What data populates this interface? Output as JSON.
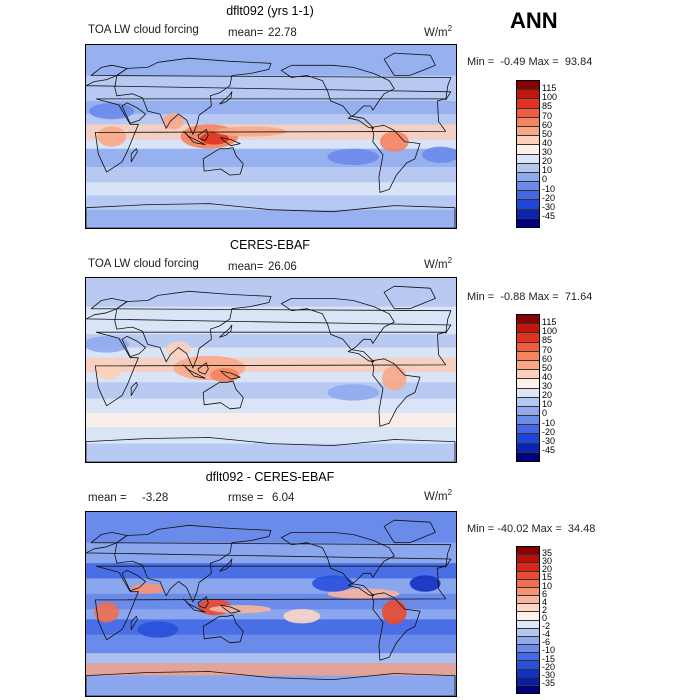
{
  "season": "ANN",
  "panels": [
    {
      "title": "dflt092 (yrs 1-1)",
      "left_label": "TOA LW cloud forcing",
      "stat_label": "mean=",
      "stat_value": "22.78",
      "units": "W/m",
      "units_sup": "2",
      "minmax": "Min =  -0.49 Max =  93.84",
      "colorbar_levels": [
        "115",
        "100",
        "85",
        "70",
        "60",
        "50",
        "40",
        "30",
        "20",
        "10",
        "0",
        "-10",
        "-20",
        "-30",
        "-45"
      ],
      "colorbar_colors": [
        "#8b0000",
        "#c0160e",
        "#e0321f",
        "#f05c3c",
        "#f5835f",
        "#f8a888",
        "#fcd0ba",
        "#fff1e6",
        "#dde6f7",
        "#b5c7f1",
        "#8faaed",
        "#6a8bea",
        "#4468e5",
        "#1f45d8",
        "#0a24b0",
        "#000080"
      ],
      "style": "model"
    },
    {
      "title": "CERES-EBAF",
      "left_label": "TOA LW cloud forcing",
      "stat_label": "mean=",
      "stat_value": "26.06",
      "units": "W/m",
      "units_sup": "2",
      "minmax": "Min =  -0.88 Max =  71.64",
      "colorbar_levels": [
        "115",
        "100",
        "85",
        "70",
        "60",
        "50",
        "40",
        "30",
        "20",
        "10",
        "0",
        "-10",
        "-20",
        "-30",
        "-45"
      ],
      "colorbar_colors": [
        "#8b0000",
        "#c0160e",
        "#e0321f",
        "#f05c3c",
        "#f5835f",
        "#f8a888",
        "#fcd0ba",
        "#fff1e6",
        "#dde6f7",
        "#b5c7f1",
        "#8faaed",
        "#6a8bea",
        "#4468e5",
        "#1f45d8",
        "#0a24b0",
        "#000080"
      ],
      "style": "obs"
    },
    {
      "title": "dflt092 - CERES-EBAF",
      "left_label": "mean =",
      "left_value": "-3.28",
      "stat_label": "rmse =",
      "stat_value": "6.04",
      "units": "W/m",
      "units_sup": "2",
      "minmax": "Min = -40.02 Max =  34.48",
      "colorbar_levels": [
        "35",
        "30",
        "20",
        "15",
        "10",
        "6",
        "4",
        "2",
        "0",
        "-2",
        "-4",
        "-6",
        "-10",
        "-15",
        "-20",
        "-30",
        "-35"
      ],
      "colorbar_colors": [
        "#8b0000",
        "#b80f0a",
        "#d8271a",
        "#ea4a30",
        "#f26e50",
        "#f69274",
        "#f9b59c",
        "#fcd6c6",
        "#fff2ea",
        "#dde6f7",
        "#b5c7f1",
        "#8faaed",
        "#6a8bea",
        "#4468e5",
        "#2a4fdd",
        "#1430c0",
        "#0a1ea0",
        "#000080"
      ],
      "style": "diff"
    }
  ]
}
